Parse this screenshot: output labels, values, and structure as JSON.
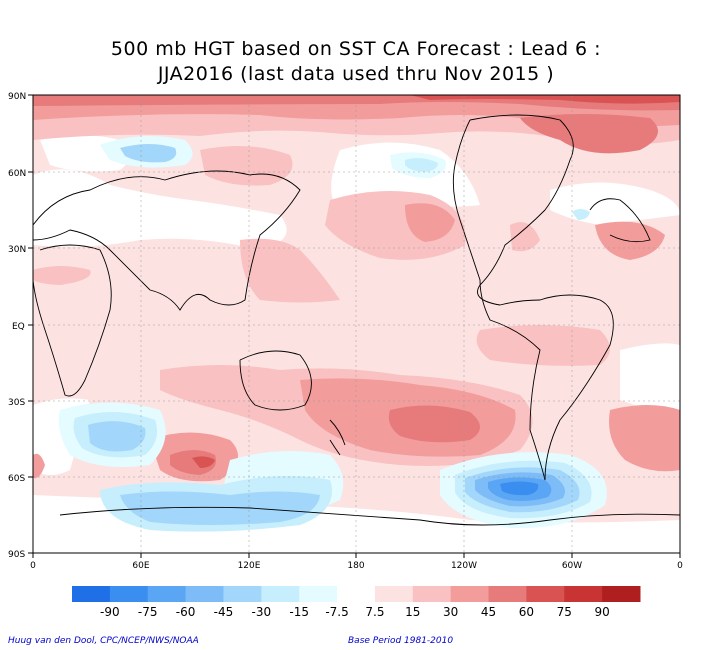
{
  "title": {
    "line1": "500 mb HGT based on SST CA Forecast : Lead 6 :",
    "line2": "JJA2016 (last data used thru Nov 2015 )"
  },
  "lat_labels": [
    "90N",
    "60N",
    "30N",
    "EQ",
    "30S",
    "60S",
    "90S"
  ],
  "lon_labels": [
    "0",
    "60E",
    "120E",
    "180",
    "120W",
    "60W",
    "0"
  ],
  "colorbar": {
    "ticks": [
      "-90",
      "-75",
      "-60",
      "-45",
      "-30",
      "-15",
      "-7.5",
      "7.5",
      "15",
      "30",
      "45",
      "60",
      "75",
      "90"
    ],
    "colors": [
      "#1f6fe6",
      "#3a8ef0",
      "#5aa6f5",
      "#7ebcf8",
      "#a3d6fb",
      "#c6eefc",
      "#e4fbff",
      "#ffffff",
      "#fde2e2",
      "#f9c1c1",
      "#f29c9c",
      "#e77b7b",
      "#d95353",
      "#c83434",
      "#b01f1f"
    ]
  },
  "footer": {
    "credit": "Huug van den Dool, CPC/NCEP/NWS/NOAA",
    "base_period": "Base Period 1981-2010"
  }
}
